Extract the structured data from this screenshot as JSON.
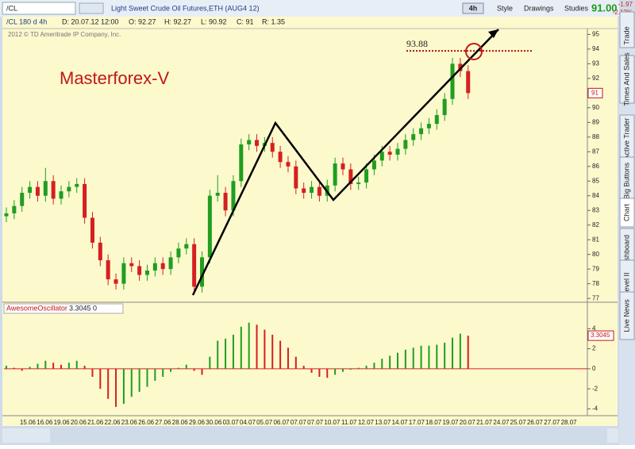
{
  "toolbar": {
    "symbol": "/CL",
    "description": "Light Sweet Crude Oil Futures,ETH (AUG4 12)",
    "aggregation": "4h",
    "buttons": [
      "Style",
      "Drawings",
      "Studies"
    ],
    "last": "91.00",
    "change": "-1.97",
    "change_pct": "-2.12%"
  },
  "header": {
    "chart_id": "/CL 180 d 4h",
    "fields": [
      "D: 20.07.12 12:00",
      "O: 92.27",
      "H: 92.27",
      "L: 90.92",
      "C: 91",
      "R: 1.35"
    ]
  },
  "tabs": [
    "Trade",
    "Times And Sales",
    "Active Trader",
    "Big Buttons",
    "Chart",
    "Dashboard",
    "Level II",
    "Live News"
  ],
  "date_axis": [
    "15.06",
    "16.06",
    "19.06",
    "20.06",
    "21.06",
    "22.06",
    "23.06",
    "26.06",
    "27.06",
    "28.06",
    "29.06",
    "30.06",
    "03.07",
    "04.07",
    "05.07",
    "06.07",
    "07.07",
    "07.07",
    "10.07",
    "11.07",
    "12.07",
    "13.07",
    "14.07",
    "17.07",
    "18.07",
    "19.07",
    "20.07",
    "21.07",
    "24.07",
    "25.07",
    "26.07",
    "27.07",
    "28.07"
  ],
  "chart_data": [
    {
      "type": "candlestick",
      "annotation": "Masterforex-V",
      "copyright": "2012 © TD Ameritrade IP Company, Inc.",
      "up_color": "#1f9e1f",
      "down_color": "#d42020",
      "open": [
        82.6,
        82.8,
        83.3,
        84.2,
        84.6,
        84.0,
        85.0,
        83.8,
        84.3,
        84.6,
        84.8,
        82.5,
        80.8,
        79.6,
        78.3,
        78.0,
        79.4,
        79.2,
        78.6,
        78.9,
        79.4,
        79.0,
        79.8,
        80.4,
        80.7,
        77.8,
        79.8,
        84.0,
        84.2,
        83.0,
        85.0,
        87.5,
        87.8,
        87.4,
        87.6,
        87.0,
        86.3,
        86.0,
        84.5,
        84.2,
        84.6,
        84.0,
        84.7,
        86.2,
        85.8,
        84.8,
        84.9,
        85.8,
        86.4,
        87.0,
        86.8,
        87.2,
        87.8,
        88.2,
        88.6,
        88.9,
        89.5,
        90.6,
        93.0,
        92.5
      ],
      "high": [
        83.2,
        83.7,
        84.6,
        85.0,
        85.0,
        85.9,
        85.4,
        84.7,
        85.0,
        85.2,
        85.2,
        82.9,
        81.2,
        80.0,
        78.7,
        79.8,
        79.8,
        79.6,
        79.3,
        79.8,
        79.8,
        80.2,
        80.8,
        81.1,
        81.1,
        80.2,
        84.4,
        85.4,
        84.6,
        85.4,
        87.9,
        88.2,
        88.2,
        88.0,
        88.0,
        87.4,
        86.7,
        86.4,
        84.9,
        85.0,
        85.0,
        85.1,
        86.6,
        86.6,
        86.2,
        85.3,
        86.2,
        86.8,
        87.4,
        87.4,
        87.6,
        88.2,
        88.6,
        89.0,
        89.3,
        89.9,
        91.0,
        93.4,
        93.4,
        92.9
      ],
      "low": [
        82.2,
        82.4,
        82.9,
        83.8,
        83.6,
        83.6,
        83.4,
        83.4,
        83.9,
        84.2,
        82.1,
        80.4,
        79.2,
        77.9,
        77.6,
        77.6,
        78.8,
        78.2,
        78.2,
        78.5,
        78.6,
        78.6,
        79.4,
        80.0,
        77.4,
        77.4,
        79.4,
        83.6,
        82.6,
        82.6,
        84.6,
        87.1,
        87.0,
        87.0,
        86.6,
        85.9,
        85.6,
        84.1,
        83.8,
        83.8,
        83.6,
        83.6,
        84.3,
        85.4,
        84.4,
        84.4,
        84.5,
        85.4,
        86.0,
        86.4,
        86.4,
        86.8,
        87.4,
        87.8,
        88.2,
        88.5,
        89.1,
        90.2,
        92.1,
        90.6
      ],
      "close": [
        82.8,
        83.3,
        84.2,
        84.6,
        84.0,
        85.0,
        83.8,
        84.3,
        84.6,
        84.8,
        82.5,
        80.8,
        79.6,
        78.3,
        78.0,
        79.4,
        79.2,
        78.6,
        78.9,
        79.4,
        79.0,
        79.8,
        80.4,
        80.7,
        77.8,
        79.8,
        84.0,
        84.2,
        83.0,
        85.0,
        87.5,
        87.8,
        87.4,
        87.6,
        87.0,
        86.3,
        86.0,
        84.5,
        84.2,
        84.6,
        84.0,
        84.7,
        86.2,
        85.8,
        84.8,
        84.9,
        85.8,
        86.4,
        87.0,
        86.8,
        87.2,
        87.8,
        88.2,
        88.6,
        88.9,
        89.5,
        90.6,
        93.0,
        92.5,
        91.0
      ],
      "ylim": [
        76.9,
        95.4
      ],
      "yticks": [
        77,
        78,
        79,
        80,
        81,
        82,
        83,
        84,
        85,
        86,
        87,
        88,
        89,
        90,
        91,
        92,
        93,
        94,
        95
      ],
      "level": 93.88,
      "last_price": 91
    },
    {
      "type": "bar",
      "title": "AwesomeOscillator",
      "last_value": 3.3045,
      "param": 0,
      "up_color": "#1f9e1f",
      "down_color": "#d42020",
      "values": [
        0.3,
        0.1,
        -0.2,
        0.2,
        0.5,
        0.8,
        0.6,
        0.4,
        0.6,
        0.8,
        0.3,
        -0.8,
        -2.0,
        -3.0,
        -3.8,
        -3.5,
        -2.8,
        -2.3,
        -1.8,
        -1.2,
        -0.8,
        -0.3,
        0.1,
        0.4,
        -0.2,
        -0.6,
        1.2,
        2.8,
        3.0,
        3.4,
        4.2,
        4.6,
        4.4,
        3.9,
        3.4,
        2.8,
        2.1,
        1.2,
        0.3,
        -0.4,
        -0.8,
        -0.9,
        -0.6,
        -0.3,
        -0.1,
        0.1,
        0.3,
        0.6,
        1.0,
        1.3,
        1.6,
        1.9,
        2.1,
        2.3,
        2.3,
        2.4,
        2.6,
        3.1,
        3.5,
        3.3045
      ],
      "ylim": [
        -4.6,
        6.4
      ],
      "yticks": [
        4,
        2,
        0,
        -2,
        -4
      ]
    }
  ]
}
